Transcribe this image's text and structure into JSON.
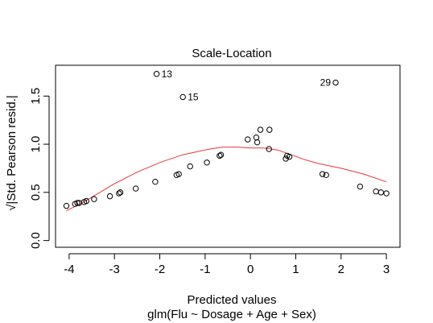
{
  "chart_data": {
    "type": "scatter",
    "title": "Scale-Location",
    "xlabel": "Predicted values",
    "subtitle": "glm(Flu ~ Dosage + Age + Sex)",
    "ylabel": "√|Std. Pearson resid.|",
    "xlim": [
      -4.3,
      3.3
    ],
    "ylim": [
      -0.07,
      1.82
    ],
    "x_ticks": [
      -4,
      -3,
      -2,
      -1,
      0,
      1,
      2,
      3
    ],
    "x_tick_labels": [
      "-4",
      "-3",
      "-2",
      "-1",
      "0",
      "1",
      "2",
      "3"
    ],
    "y_ticks": [
      0.0,
      0.5,
      1.0,
      1.5
    ],
    "y_tick_labels": [
      "0.0",
      "0.5",
      "1.0",
      "1.5"
    ],
    "grid": false,
    "colors": {
      "points": "#000000",
      "smoother": "#e8363f"
    },
    "points": [
      {
        "x": -4.06,
        "y": 0.36
      },
      {
        "x": -3.87,
        "y": 0.38
      },
      {
        "x": -3.82,
        "y": 0.39
      },
      {
        "x": -3.78,
        "y": 0.39
      },
      {
        "x": -3.67,
        "y": 0.4
      },
      {
        "x": -3.62,
        "y": 0.41
      },
      {
        "x": -3.45,
        "y": 0.43
      },
      {
        "x": -3.1,
        "y": 0.46
      },
      {
        "x": -2.9,
        "y": 0.49
      },
      {
        "x": -2.87,
        "y": 0.5
      },
      {
        "x": -2.53,
        "y": 0.54
      },
      {
        "x": -2.1,
        "y": 0.61
      },
      {
        "x": -2.07,
        "y": 1.73,
        "label": "13"
      },
      {
        "x": -1.63,
        "y": 0.68
      },
      {
        "x": -1.58,
        "y": 0.69
      },
      {
        "x": -1.49,
        "y": 1.49,
        "label": "15"
      },
      {
        "x": -1.33,
        "y": 0.77
      },
      {
        "x": -0.96,
        "y": 0.81
      },
      {
        "x": -0.68,
        "y": 0.88
      },
      {
        "x": -0.65,
        "y": 0.89
      },
      {
        "x": -0.06,
        "y": 1.05
      },
      {
        "x": 0.13,
        "y": 1.07
      },
      {
        "x": 0.15,
        "y": 1.02
      },
      {
        "x": 0.22,
        "y": 1.15
      },
      {
        "x": 0.41,
        "y": 0.95
      },
      {
        "x": 0.42,
        "y": 1.15
      },
      {
        "x": 0.78,
        "y": 0.85
      },
      {
        "x": 0.81,
        "y": 0.88
      },
      {
        "x": 0.86,
        "y": 0.87
      },
      {
        "x": 1.59,
        "y": 0.69
      },
      {
        "x": 1.67,
        "y": 0.68
      },
      {
        "x": 1.88,
        "y": 1.64,
        "label": "29"
      },
      {
        "x": 2.42,
        "y": 0.56
      },
      {
        "x": 2.77,
        "y": 0.51
      },
      {
        "x": 2.88,
        "y": 0.5
      },
      {
        "x": 3.0,
        "y": 0.49
      }
    ],
    "smoother": [
      {
        "x": -4.06,
        "y": 0.31
      },
      {
        "x": -3.8,
        "y": 0.37
      },
      {
        "x": -3.5,
        "y": 0.45
      },
      {
        "x": -3.0,
        "y": 0.59
      },
      {
        "x": -2.5,
        "y": 0.71
      },
      {
        "x": -2.0,
        "y": 0.81
      },
      {
        "x": -1.5,
        "y": 0.89
      },
      {
        "x": -1.2,
        "y": 0.92
      },
      {
        "x": -0.9,
        "y": 0.95
      },
      {
        "x": -0.6,
        "y": 0.97
      },
      {
        "x": -0.3,
        "y": 0.97
      },
      {
        "x": 0.0,
        "y": 0.96
      },
      {
        "x": 0.3,
        "y": 0.96
      },
      {
        "x": 0.6,
        "y": 0.94
      },
      {
        "x": 0.9,
        "y": 0.89
      },
      {
        "x": 1.2,
        "y": 0.84
      },
      {
        "x": 1.5,
        "y": 0.8
      },
      {
        "x": 2.0,
        "y": 0.75
      },
      {
        "x": 2.5,
        "y": 0.69
      },
      {
        "x": 3.0,
        "y": 0.61
      }
    ]
  }
}
